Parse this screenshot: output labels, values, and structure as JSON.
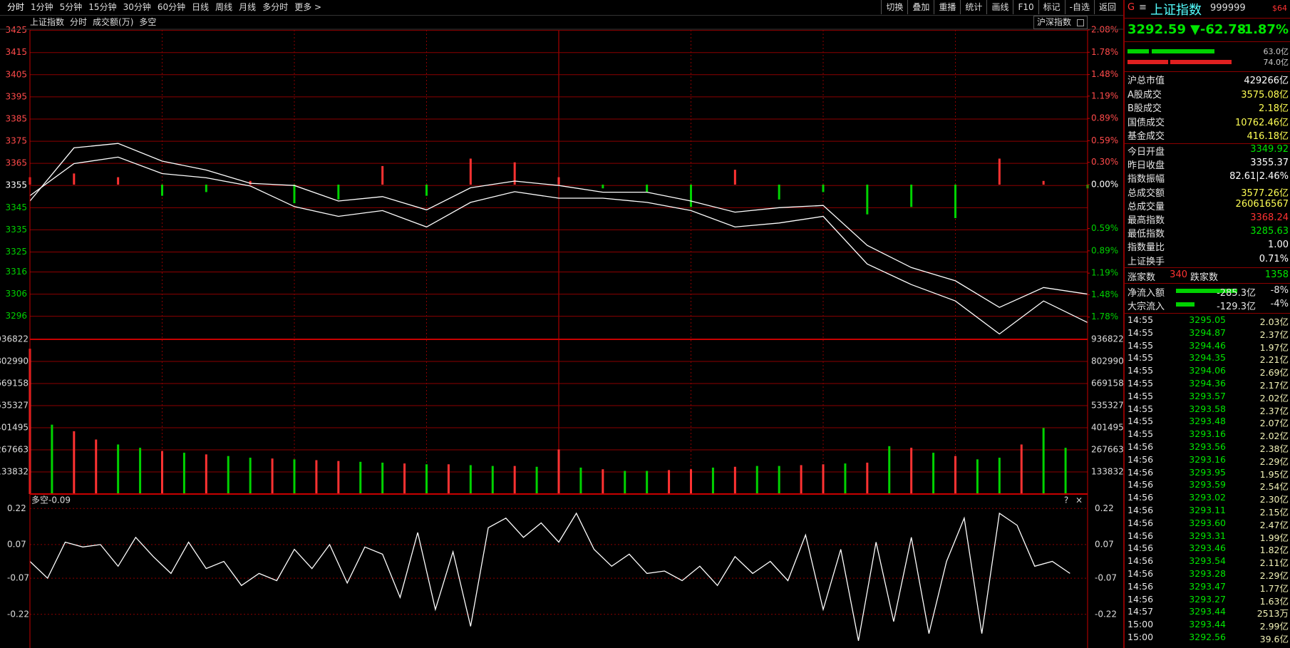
{
  "toolbar": {
    "left": [
      "分时",
      "1分钟",
      "5分钟",
      "15分钟",
      "30分钟",
      "60分钟",
      "日线",
      "周线",
      "月线",
      "多分时",
      "更多 >"
    ],
    "right": [
      "切换",
      "叠加",
      "重播",
      "统计",
      "画线",
      "F10",
      "标记",
      "-自选",
      "返回"
    ]
  },
  "chart_header": {
    "items": [
      "上证指数",
      "分时",
      "成交额(万)",
      "多空"
    ],
    "right": "沪深指数"
  },
  "chart_data": [
    {
      "type": "line",
      "x": [
        0,
        10,
        20,
        30,
        40,
        50,
        60,
        70,
        80,
        90,
        100,
        110,
        120,
        130,
        140,
        150,
        160,
        170,
        180,
        190,
        200,
        210,
        220,
        230,
        240
      ],
      "xlim": [
        0,
        240
      ],
      "xticks": [
        30,
        60,
        90,
        120,
        150,
        180,
        210
      ],
      "ylim": [
        3285.6,
        3425.2
      ],
      "yticks": [
        3425,
        3415,
        3405,
        3395,
        3385,
        3375,
        3365,
        3355,
        3345,
        3335,
        3325,
        3316,
        3306,
        3296
      ],
      "y2lim": [
        -2.08,
        2.08
      ],
      "y2ticks": [
        {
          "value": 2.08,
          "label": "2.08%"
        },
        {
          "value": 1.78,
          "label": "1.78%"
        },
        {
          "value": 1.48,
          "label": "1.48%"
        },
        {
          "value": 1.19,
          "label": "1.19%"
        },
        {
          "value": 0.89,
          "label": "0.89%"
        },
        {
          "value": 0.59,
          "label": "0.59%"
        },
        {
          "value": 0.3,
          "label": "0.30%"
        },
        {
          "value": 0,
          "label": "0.00%"
        },
        {
          "value": -0.59,
          "label": "0.59%"
        },
        {
          "value": -0.89,
          "label": "0.89%"
        },
        {
          "value": -1.19,
          "label": "1.19%"
        },
        {
          "value": -1.48,
          "label": "1.48%"
        },
        {
          "value": -1.78,
          "label": "1.78%"
        }
      ],
      "series": [
        {
          "type": "bar",
          "axis": "y2",
          "color": "#ff3232",
          "down_color": "#00d200",
          "values": [
            0.1,
            0.15,
            0.1,
            -0.15,
            -0.1,
            0.05,
            -0.25,
            -0.2,
            0.25,
            -0.15,
            0.35,
            0.3,
            0.1,
            -0.05,
            -0.1,
            -0.3,
            0.2,
            -0.2,
            -0.1,
            -0.4,
            -0.3,
            -0.45,
            0.35,
            0.05,
            -0.05
          ]
        },
        {
          "type": "line",
          "color": "#ffffff",
          "values": [
            3350.4,
            3364.9,
            3367.8,
            3360.4,
            3358.5,
            3354.8,
            3345.5,
            3341.1,
            3343.7,
            3336.3,
            3347.4,
            3352.2,
            3349.3,
            3349.3,
            3347.4,
            3343.7,
            3336.3,
            3338.1,
            3341.1,
            3319.6,
            3310.3,
            3302.9,
            3288.0,
            3302.9,
            3293.2
          ]
        },
        {
          "type": "line",
          "color": "#ffffff",
          "values": [
            3348,
            3372,
            3374,
            3366,
            3362,
            3356,
            3355,
            3348,
            3350,
            3344,
            3354,
            3357,
            3355,
            3352,
            3352,
            3348,
            3343,
            3345,
            3346,
            3328,
            3318,
            3312,
            3300,
            3309,
            3306
          ]
        }
      ]
    },
    {
      "type": "bar",
      "x": [
        0,
        5,
        10,
        15,
        20,
        25,
        30,
        35,
        40,
        45,
        50,
        55,
        60,
        65,
        70,
        75,
        80,
        85,
        90,
        95,
        100,
        105,
        110,
        115,
        120,
        125,
        130,
        135,
        140,
        145,
        150,
        155,
        160,
        165,
        170,
        175,
        180,
        185,
        190,
        195,
        200,
        205,
        210,
        215,
        220,
        225,
        230,
        235
      ],
      "xlim": [
        0,
        240
      ],
      "ylim": [
        0,
        936822
      ],
      "yticks": [
        936822,
        802990,
        669158,
        535327,
        401495,
        267663,
        133832
      ],
      "series": [
        {
          "color": "#ff3232",
          "values": [
            880000,
            null,
            380000,
            330000,
            null,
            null,
            260000,
            null,
            240000,
            null,
            null,
            215000,
            null,
            205000,
            200000,
            null,
            null,
            185000,
            null,
            180000,
            null,
            null,
            170000,
            null,
            270000,
            null,
            150000,
            null,
            null,
            145000,
            150000,
            null,
            165000,
            null,
            null,
            175000,
            180000,
            null,
            190000,
            null,
            280000,
            null,
            230000,
            null,
            null,
            300000,
            null,
            null
          ]
        },
        {
          "color": "#00d200",
          "values": [
            null,
            420000,
            null,
            null,
            300000,
            280000,
            null,
            250000,
            null,
            230000,
            220000,
            null,
            210000,
            null,
            null,
            195000,
            190000,
            null,
            180000,
            null,
            175000,
            170000,
            null,
            165000,
            null,
            160000,
            null,
            140000,
            140000,
            null,
            null,
            160000,
            null,
            170000,
            170000,
            null,
            null,
            185000,
            null,
            290000,
            null,
            250000,
            null,
            210000,
            220000,
            null,
            400000,
            280000
          ]
        }
      ]
    },
    {
      "type": "line",
      "title": "多空-0.09",
      "icons": [
        "?",
        "×"
      ],
      "x": [
        0,
        4,
        8,
        12,
        16,
        20,
        24,
        28,
        32,
        36,
        40,
        44,
        48,
        52,
        56,
        60,
        64,
        68,
        72,
        76,
        80,
        84,
        88,
        92,
        96,
        100,
        104,
        108,
        112,
        116,
        120,
        124,
        128,
        132,
        136,
        140,
        144,
        148,
        152,
        156,
        160,
        164,
        168,
        172,
        176,
        180,
        184,
        188,
        192,
        196,
        200,
        204,
        208,
        212,
        216,
        220,
        224,
        228,
        232,
        236
      ],
      "xlim": [
        0,
        240
      ],
      "ylim": [
        -0.36,
        0.28
      ],
      "yticks": [
        0.22,
        0.07,
        -0.07,
        -0.22
      ],
      "series": [
        {
          "color": "#ffffff",
          "values": [
            0.0,
            -0.07,
            0.08,
            0.06,
            0.07,
            -0.02,
            0.1,
            0.02,
            -0.05,
            0.08,
            -0.03,
            0.0,
            -0.1,
            -0.05,
            -0.08,
            0.05,
            -0.03,
            0.07,
            -0.09,
            0.06,
            0.03,
            -0.15,
            0.12,
            -0.2,
            0.04,
            -0.27,
            0.14,
            0.18,
            0.1,
            0.16,
            0.08,
            0.2,
            0.05,
            -0.02,
            0.03,
            -0.05,
            -0.04,
            -0.08,
            -0.02,
            -0.1,
            0.02,
            -0.05,
            0.0,
            -0.08,
            0.11,
            -0.2,
            0.05,
            -0.33,
            0.08,
            -0.25,
            0.1,
            -0.3,
            0.0,
            0.18,
            -0.3,
            0.2,
            0.15,
            -0.02,
            0.0,
            -0.05
          ]
        }
      ]
    }
  ],
  "side_panel": {
    "header": {
      "flag": "G",
      "menu": "≡",
      "name": "上证指数",
      "code": "999999",
      "badge": "$64"
    },
    "quote": {
      "price": "3292.59",
      "change": "▼-62.78",
      "percent": "-1.87%"
    },
    "bar_labels": [
      "63.0亿",
      "74.0亿"
    ],
    "rows": [
      {
        "label": "沪总市值",
        "value": "429266亿",
        "color": "#ffffff"
      },
      {
        "label": "A股成交",
        "value": "3575.08亿",
        "color": "#ffff54"
      },
      {
        "label": "B股成交",
        "value": "2.18亿",
        "color": "#ffff54"
      },
      {
        "label": "国债成交",
        "value": "10762.46亿",
        "color": "#ffff54"
      },
      {
        "label": "基金成交",
        "value": "416.18亿",
        "color": "#ffff54"
      },
      {
        "label": "今日开盘",
        "value": "3349.92",
        "color": "#00e600"
      },
      {
        "label": "昨日收盘",
        "value": "3355.37",
        "color": "#ffffff"
      },
      {
        "label": "指数振幅",
        "value": "82.61|2.46%",
        "color": "#ffffff"
      },
      {
        "label": "总成交额",
        "value": "3577.26亿",
        "color": "#ffff54"
      },
      {
        "label": "总成交量",
        "value": "260616567",
        "color": "#ffff54"
      },
      {
        "label": "最高指数",
        "value": "3368.24",
        "color": "#ff3232"
      },
      {
        "label": "最低指数",
        "value": "3285.63",
        "color": "#00e600"
      },
      {
        "label": "指数量比",
        "value": "1.00",
        "color": "#ffffff"
      },
      {
        "label": "上证换手",
        "value": "0.71%",
        "color": "#ffffff"
      }
    ],
    "breadth": {
      "up_label": "涨家数",
      "up": "340",
      "down_label": "跌家数",
      "down": "1358"
    },
    "flows": [
      {
        "label": "净流入额",
        "value": "-285.3亿",
        "percent": "-8%"
      },
      {
        "label": "大宗流入",
        "value": "-129.3亿",
        "percent": "-4%"
      }
    ],
    "ticks": [
      {
        "time": "14:55",
        "price": "3295.05",
        "amount": "2.03亿"
      },
      {
        "time": "14:55",
        "price": "3294.87",
        "amount": "2.37亿"
      },
      {
        "time": "14:55",
        "price": "3294.46",
        "amount": "1.97亿"
      },
      {
        "time": "14:55",
        "price": "3294.35",
        "amount": "2.21亿"
      },
      {
        "time": "14:55",
        "price": "3294.06",
        "amount": "2.69亿"
      },
      {
        "time": "14:55",
        "price": "3294.36",
        "amount": "2.17亿"
      },
      {
        "time": "14:55",
        "price": "3293.57",
        "amount": "2.02亿"
      },
      {
        "time": "14:55",
        "price": "3293.58",
        "amount": "2.37亿"
      },
      {
        "time": "14:55",
        "price": "3293.48",
        "amount": "2.07亿"
      },
      {
        "time": "14:55",
        "price": "3293.16",
        "amount": "2.02亿"
      },
      {
        "time": "14:56",
        "price": "3293.56",
        "amount": "2.38亿"
      },
      {
        "time": "14:56",
        "price": "3293.16",
        "amount": "2.29亿"
      },
      {
        "time": "14:56",
        "price": "3293.95",
        "amount": "1.95亿"
      },
      {
        "time": "14:56",
        "price": "3293.59",
        "amount": "2.54亿"
      },
      {
        "time": "14:56",
        "price": "3293.02",
        "amount": "2.30亿"
      },
      {
        "time": "14:56",
        "price": "3293.11",
        "amount": "2.15亿"
      },
      {
        "time": "14:56",
        "price": "3293.60",
        "amount": "2.47亿"
      },
      {
        "time": "14:56",
        "price": "3293.31",
        "amount": "1.99亿"
      },
      {
        "time": "14:56",
        "price": "3293.46",
        "amount": "1.82亿"
      },
      {
        "time": "14:56",
        "price": "3293.54",
        "amount": "2.11亿"
      },
      {
        "time": "14:56",
        "price": "3293.28",
        "amount": "2.29亿"
      },
      {
        "time": "14:56",
        "price": "3293.47",
        "amount": "1.77亿"
      },
      {
        "time": "14:56",
        "price": "3293.27",
        "amount": "1.63亿"
      },
      {
        "time": "14:57",
        "price": "3293.44",
        "amount": "2513万"
      },
      {
        "time": "15:00",
        "price": "3293.44",
        "amount": "2.99亿"
      },
      {
        "time": "15:00",
        "price": "3292.56",
        "amount": "39.6亿"
      }
    ]
  }
}
